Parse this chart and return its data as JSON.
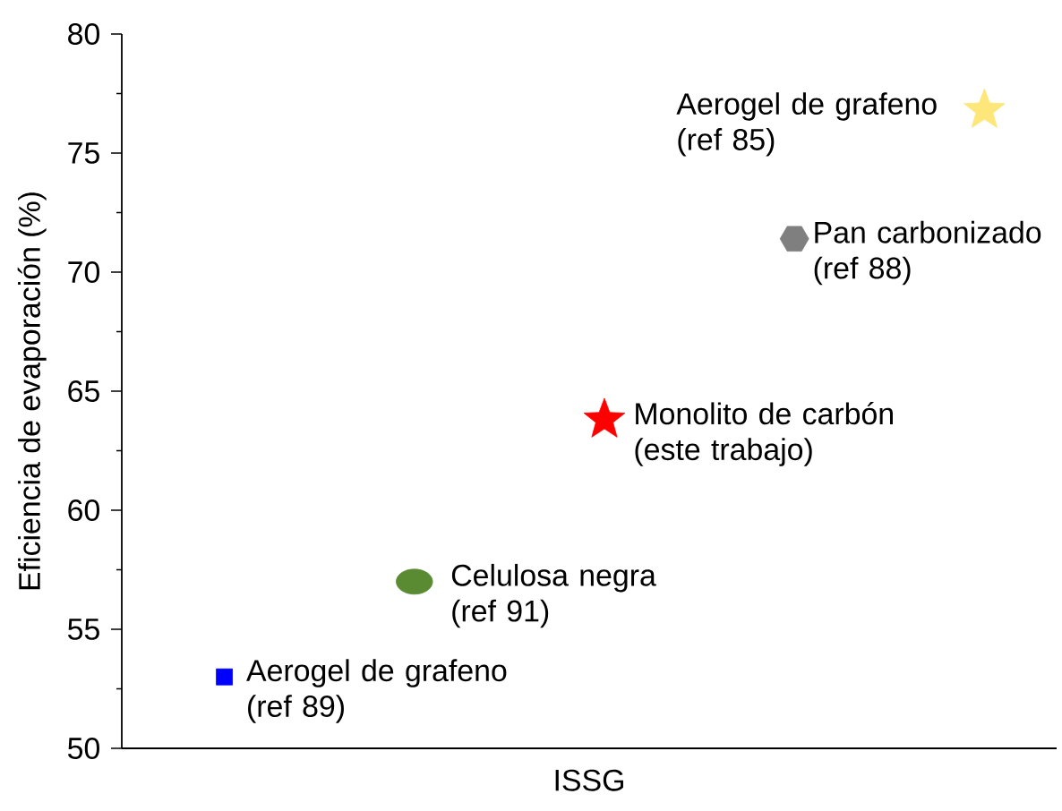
{
  "chart_data": {
    "type": "scatter",
    "xlabel": "ISSG",
    "ylabel": "Eficiencia de evaporación (%)",
    "categories": [
      null,
      null,
      null,
      null,
      null
    ],
    "ylim": [
      50,
      80
    ],
    "yticks": [
      50,
      55,
      60,
      65,
      70,
      75,
      80
    ],
    "series": [
      {
        "name": "Aerogel de grafeno (ref 89)",
        "color": "#0000ff",
        "marker": "square",
        "values": [
          53.0,
          null,
          null,
          null,
          null
        ]
      },
      {
        "name": "Celulosa negra (ref 91)",
        "color": "#5a8a32",
        "marker": "circle",
        "values": [
          null,
          57.0,
          null,
          null,
          null
        ]
      },
      {
        "name": "Monolito de carbón (este trabajo)",
        "color": "#ff0000",
        "marker": "star",
        "values": [
          null,
          null,
          63.8,
          null,
          null
        ]
      },
      {
        "name": "Pan carbonizado (ref 88)",
        "color": "#7f7f7f",
        "values": [
          null,
          null,
          null,
          71.4,
          null
        ]
      },
      {
        "name": "Aerogel de grafeno (ref 85)",
        "color": "#fde77a",
        "marker": "star",
        "values": [
          null,
          null,
          null,
          null,
          76.8
        ]
      }
    ]
  }
}
